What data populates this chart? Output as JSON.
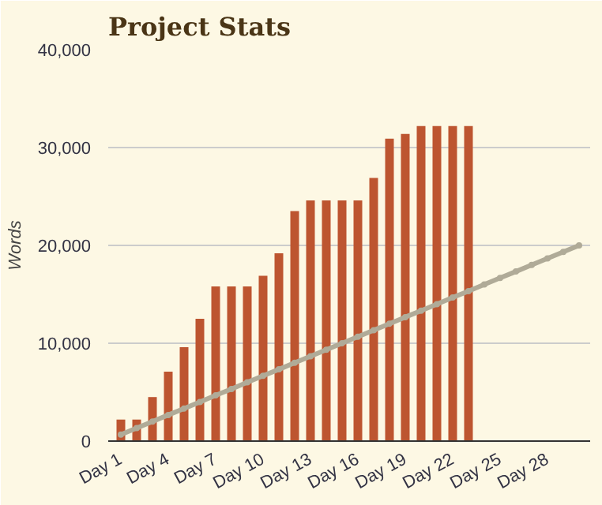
{
  "chart_data": {
    "type": "bar",
    "title": "Project Stats",
    "ylabel": "Words",
    "categories": [
      "Day 1",
      null,
      null,
      "Day 4",
      null,
      null,
      "Day 7",
      null,
      null,
      "Day 10",
      null,
      null,
      "Day 13",
      null,
      null,
      "Day 16",
      null,
      null,
      "Day 19",
      null,
      null,
      "Day 22",
      null,
      null,
      "Day 25",
      null,
      null,
      "Day 28",
      null,
      null
    ],
    "series": [
      {
        "color": "#bd5530",
        "values": [
          2200,
          2200,
          4500,
          7100,
          9600,
          12500,
          15800,
          15800,
          15800,
          16900,
          19200,
          23500,
          24600,
          24600,
          24600,
          24600,
          26900,
          30900,
          31400,
          32200,
          32200,
          32200,
          32200,
          null,
          null,
          null,
          null,
          null,
          null,
          null
        ]
      },
      {
        "type": "line",
        "color": "#b0ab98",
        "marker": "circle",
        "values": [
          670,
          1330,
          2000,
          2670,
          3330,
          4000,
          4670,
          5330,
          6000,
          6670,
          7330,
          8000,
          8670,
          9330,
          10000,
          10670,
          11330,
          12000,
          12670,
          13330,
          14000,
          14670,
          15330,
          16000,
          16670,
          17330,
          18000,
          18670,
          19330,
          20000
        ]
      }
    ],
    "ylim": [
      0,
      40000
    ],
    "yticks": [
      {
        "value": 0,
        "label": "0"
      },
      {
        "value": 10000,
        "label": "10,000"
      },
      {
        "value": 20000,
        "label": "20,000"
      },
      {
        "value": 30000,
        "label": "30,000"
      },
      {
        "value": 40000,
        "label": "40,000"
      }
    ],
    "grid": "y"
  }
}
